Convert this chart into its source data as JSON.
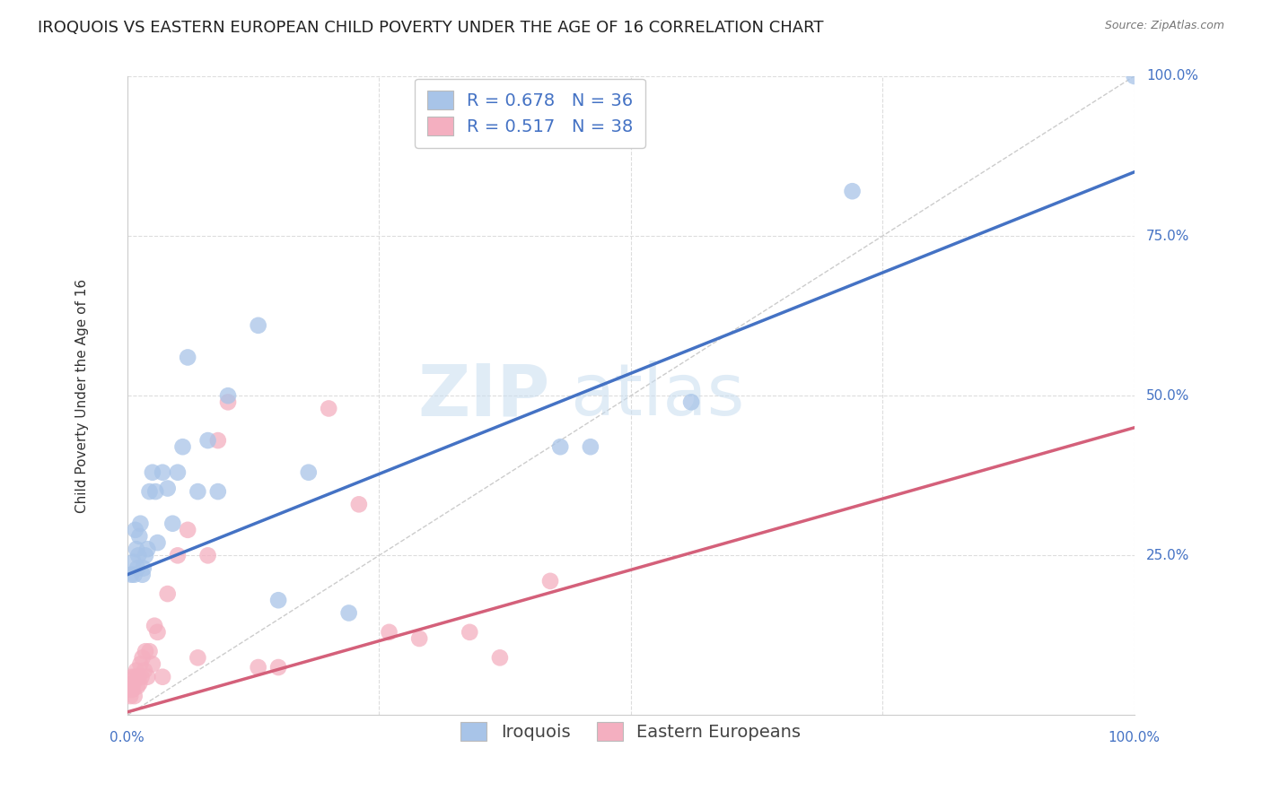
{
  "title": "IROQUOIS VS EASTERN EUROPEAN CHILD POVERTY UNDER THE AGE OF 16 CORRELATION CHART",
  "source": "Source: ZipAtlas.com",
  "ylabel": "Child Poverty Under the Age of 16",
  "legend_label_1": "Iroquois",
  "legend_label_2": "Eastern Europeans",
  "r1": 0.678,
  "n1": 36,
  "r2": 0.517,
  "n2": 38,
  "watermark_zip": "ZIP",
  "watermark_atlas": "atlas",
  "iroquois_color": "#a8c4e8",
  "iroquois_line_color": "#4472c4",
  "eastern_color": "#f4afc0",
  "eastern_line_color": "#d4607a",
  "diagonal_color": "#cccccc",
  "iroquois_x": [
    0.004,
    0.006,
    0.007,
    0.008,
    0.009,
    0.01,
    0.011,
    0.012,
    0.013,
    0.015,
    0.016,
    0.018,
    0.02,
    0.022,
    0.025,
    0.028,
    0.03,
    0.035,
    0.04,
    0.045,
    0.05,
    0.055,
    0.06,
    0.07,
    0.08,
    0.09,
    0.1,
    0.13,
    0.15,
    0.18,
    0.22,
    0.43,
    0.46,
    0.56,
    0.72,
    1.0
  ],
  "iroquois_y": [
    0.22,
    0.24,
    0.22,
    0.29,
    0.26,
    0.23,
    0.25,
    0.28,
    0.3,
    0.22,
    0.23,
    0.25,
    0.26,
    0.35,
    0.38,
    0.35,
    0.27,
    0.38,
    0.355,
    0.3,
    0.38,
    0.42,
    0.56,
    0.35,
    0.43,
    0.35,
    0.5,
    0.61,
    0.18,
    0.38,
    0.16,
    0.42,
    0.42,
    0.49,
    0.82,
    1.0
  ],
  "eastern_x": [
    0.003,
    0.004,
    0.005,
    0.005,
    0.006,
    0.007,
    0.008,
    0.009,
    0.01,
    0.011,
    0.012,
    0.013,
    0.014,
    0.015,
    0.017,
    0.018,
    0.02,
    0.022,
    0.025,
    0.027,
    0.03,
    0.035,
    0.04,
    0.05,
    0.06,
    0.07,
    0.08,
    0.09,
    0.1,
    0.13,
    0.15,
    0.2,
    0.23,
    0.26,
    0.29,
    0.34,
    0.37,
    0.42
  ],
  "eastern_y": [
    0.03,
    0.04,
    0.04,
    0.06,
    0.05,
    0.03,
    0.06,
    0.07,
    0.045,
    0.06,
    0.05,
    0.08,
    0.06,
    0.09,
    0.07,
    0.1,
    0.06,
    0.1,
    0.08,
    0.14,
    0.13,
    0.06,
    0.19,
    0.25,
    0.29,
    0.09,
    0.25,
    0.43,
    0.49,
    0.075,
    0.075,
    0.48,
    0.33,
    0.13,
    0.12,
    0.13,
    0.09,
    0.21
  ],
  "blue_line_x0": 0.0,
  "blue_line_y0": 0.22,
  "blue_line_x1": 1.0,
  "blue_line_y1": 0.85,
  "pink_line_x0": 0.0,
  "pink_line_y0": 0.005,
  "pink_line_x1": 1.0,
  "pink_line_y1": 0.45,
  "background_color": "#ffffff",
  "grid_color": "#dddddd",
  "xlim": [
    0,
    1.0
  ],
  "ylim": [
    0,
    1.0
  ],
  "title_fontsize": 13,
  "axis_label_fontsize": 11,
  "tick_fontsize": 11,
  "legend_fontsize": 14
}
